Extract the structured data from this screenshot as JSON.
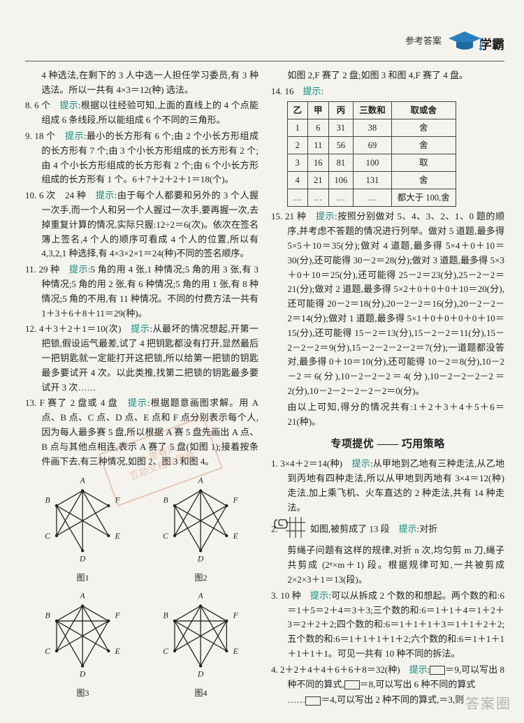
{
  "header": {
    "section": "参考答案",
    "brand": "学霸",
    "cap_color": "#2a7fbf"
  },
  "left": {
    "p0a": "4 种选法,在剩下的 3 人中选一人担任学习委员,有 3 种选法。所以一共有 4×3＝12(种) 选法。",
    "p8": "8. 6 个　",
    "p8h": "提示",
    "p8t": ":根据以往经验可知,上面的直线上的 4 个点能组成 6 条线段,所以能组成 6 个不同的三角形。",
    "p9": "9. 18 个　",
    "p9h": "提示",
    "p9t": ":最小的长方形有 6 个;由 2 个小长方形组成的长方形有 7 个;由 3 个小长方形组成的长方形有 2 个;由 4 个小长方形组成的长方形有 2 个;由 6 个小长方形组成的长方形有 1 个。6＋7＋2＋2＋1＝18(个)。",
    "p10": "10. 6 次　24 种　",
    "p10h": "提示",
    "p10t": ":由于每个人都要和另外的 3 个人握一次手,而一个人和另一个人握过一次手,要再握一次,去掉重复计算的情况,实际只握:12÷2＝6(次)。依次在签名簿上签名,4 个人的顺序可看成 4 个人的位置,所以有 4,3,2,1 种选择,有 4×3×2×1＝24(种)不同的签名顺序。",
    "p11": "11. 29 种　",
    "p11h": "提示",
    "p11t": ":5 角的用 4 张,1 种情况;5 角的用 3 张,有 3 种情况;5 角的用 2 张,有 6 种情况;5 角的用 1 张,有 8 种情况;5 角的不用,有 11 种情况。不同的付费方法一共有 1＋3＋6＋8＋11＝29(种)。",
    "p12": "12. 4＋3＋2＋1＝10(次)　",
    "p12h": "提示",
    "p12t": ":从最坏的情况想起,开第一把锁,假设运气最差,试了 4 把钥匙都没有打开,显然最后一把钥匙就一定能打开这把锁,所以给第一把锁的钥匙最多要试开 4 次。以此类推,找第二把锁的钥匙最多要试开 3 次……",
    "p13": "13. F 赛了 2 盘或 4 盘　",
    "p13h": "提示",
    "p13t": ":根据题意画图求解。用 A 点、B 点、C 点、D 点、E 点和 F 点分别表示每个人,因为每人最多赛 5 盘,所以根据 A 赛 5 盘先画出 A 点、B 点与其他点相连,表示 A 赛了 5 盘(如图 1);接着按条件画下去,有三种情况,如图 2、图 3 和图 4。",
    "fig1": "图1",
    "fig2": "图2",
    "fig3": "图3",
    "fig4": "图4",
    "labels": [
      "A",
      "B",
      "C",
      "D",
      "E",
      "F"
    ]
  },
  "right": {
    "cont": "如图 2,F 赛了 2 盘;如图 3 和图 4,F 赛了 4 盘。",
    "p14": "14. 16　",
    "p14h": "提示",
    "p14t": ":",
    "table": {
      "cols": [
        "乙",
        "甲",
        "丙",
        "三数和",
        "取或舍"
      ],
      "rows": [
        [
          "1",
          "6",
          "31",
          "38",
          "舍"
        ],
        [
          "2",
          "11",
          "56",
          "69",
          "舍"
        ],
        [
          "3",
          "16",
          "81",
          "100",
          "取"
        ],
        [
          "4",
          "21",
          "106",
          "131",
          "舍"
        ],
        [
          "…",
          "…",
          "…",
          "…",
          "都大于 100,舍"
        ]
      ]
    },
    "p15": "15. 21 种　",
    "p15h": "提示",
    "p15t": ":按照分别做对 5、4、3、2、1、0 题的顺序,并考虑不答题的情况进行列举。做对 5 道题,最多得 5×5＋10＝35(分);做对 4 道题,最多得 5×4＋0＋10＝30(分),还可能得 30－2＝28(分);做对 3 道题,最多得 5×3＋0＋10＝25(分),还可能得 25－2＝23(分),25－2－2＝21(分);做对 2 道题,最多得 5×2＋0＋0＋0＋10＝20(分),还可能得 20－2＝18(分),20－2－2＝16(分),20－2－2－2＝14(分);做对 1 道题,最多得 5×1＋0＋0＋0＋0＋10＝15(分),还可能得 15－2＝13(分),15－2－2＝11(分),15－2－2－2＝9(分),15－2－2－2－2＝7(分);一道题都没答对,最多得 0＋10＝10(分),还可能得 10－2＝8(分),10－2－2＝6(分),10－2－2－2＝4(分),10－2－2－2－2＝2(分),10－2－2－2－2－2＝0(分)。",
    "p15b": "由以上可知,得分的情况共有:1＋2＋3＋4＋5＋6＝21(种)。",
    "section": "专项提优 —— 巧用策略",
    "q1": "1. 3×4＋2＝14(种)　",
    "q1h": "提示",
    "q1t": ":从甲地到乙地有三种走法,从乙地到丙地有四种走法,所以从甲地到丙地有 3×4＝12(种) 走法,加上乘飞机、火车直达的 2 种走法,共有 14 种走法。",
    "q2": "2.　",
    "q2a": "如图,被剪成了 13 段　",
    "q2h": "提示",
    "q2t": ":对折",
    "q2b": "剪绳子问题有这样的规律,对折 n 次,均匀剪 m 刀,绳子共剪成 (2ⁿ×m＋1) 段。根据规律可知,一共被剪成 2×2×3＋1＝13(段)。",
    "q3": "3. 10 种　",
    "q3h": "提示",
    "q3t": ":可以从拆成 2 个数的和想起。两个数的和:6＝1＋5＝2＋4＝3＋3;三个数的和:6＝1＋1＋4＝1＋2＋3＝2＋2＋2;四个数的和:6＝1＋1＋1＋3＝1＋1＋2＋2;五个数的和:6＝1＋1＋1＋1＋2;六个数的和:6＝1＋1＋1＋1＋1＋1。可见一共有 10 种不同的拆法。",
    "q4": "4. 2＋2＋4＋4＋6＋6＋8＝32(种)　",
    "q4h": "提示",
    "q4a": ":",
    "q4b": "＝9,可以写出 8 种不同的算式,",
    "q4c": "＝8,可以写出 6 种不同的算式",
    "q4d": "……",
    "q4e": "＝4,可以写出 2 种不同的算式,＝3,则"
  },
  "watermark": "答案圈",
  "colors": {
    "hint": "#0a8a7a",
    "accent": "#2a7fbf",
    "stroke": "#222222"
  }
}
